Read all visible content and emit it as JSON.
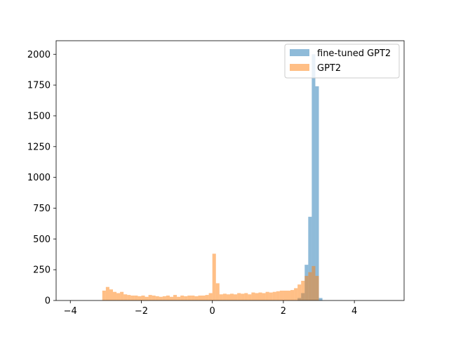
{
  "chart_data": {
    "type": "histogram",
    "xlim": [
      -4.4,
      5.4
    ],
    "ylim": [
      0,
      2110
    ],
    "xticks": [
      -4,
      -2,
      0,
      2,
      4
    ],
    "xtick_labels": [
      "−4",
      "−2",
      "0",
      "2",
      "4"
    ],
    "yticks": [
      0,
      250,
      500,
      750,
      1000,
      1250,
      1500,
      1750,
      2000
    ],
    "ytick_labels": [
      "0",
      "250",
      "500",
      "750",
      "1000",
      "1250",
      "1500",
      "1750",
      "2000"
    ],
    "grid": false,
    "legend_position": "top-right",
    "series": [
      {
        "name": "fine-tuned GPT2",
        "color": "#1f77b4",
        "opacity": 0.5,
        "bin_width": 0.1,
        "bins": [
          [
            2.4,
            20
          ],
          [
            2.5,
            60
          ],
          [
            2.6,
            290
          ],
          [
            2.7,
            680
          ],
          [
            2.8,
            2000
          ],
          [
            2.9,
            1740
          ],
          [
            3.0,
            20
          ]
        ]
      },
      {
        "name": "GPT2",
        "color": "#ff7f0e",
        "opacity": 0.5,
        "bin_width": 0.1,
        "bins": [
          [
            -3.1,
            80
          ],
          [
            -3.0,
            110
          ],
          [
            -2.9,
            90
          ],
          [
            -2.8,
            70
          ],
          [
            -2.7,
            60
          ],
          [
            -2.6,
            70
          ],
          [
            -2.5,
            50
          ],
          [
            -2.4,
            45
          ],
          [
            -2.3,
            40
          ],
          [
            -2.2,
            40
          ],
          [
            -2.1,
            35
          ],
          [
            -2.0,
            40
          ],
          [
            -1.9,
            30
          ],
          [
            -1.8,
            45
          ],
          [
            -1.7,
            40
          ],
          [
            -1.6,
            35
          ],
          [
            -1.5,
            30
          ],
          [
            -1.4,
            35
          ],
          [
            -1.3,
            40
          ],
          [
            -1.2,
            30
          ],
          [
            -1.1,
            45
          ],
          [
            -1.0,
            30
          ],
          [
            -0.9,
            40
          ],
          [
            -0.8,
            35
          ],
          [
            -0.7,
            40
          ],
          [
            -0.6,
            40
          ],
          [
            -0.5,
            35
          ],
          [
            -0.4,
            40
          ],
          [
            -0.3,
            40
          ],
          [
            -0.2,
            45
          ],
          [
            -0.1,
            60
          ],
          [
            0.0,
            380
          ],
          [
            0.1,
            140
          ],
          [
            0.2,
            50
          ],
          [
            0.3,
            55
          ],
          [
            0.4,
            50
          ],
          [
            0.5,
            55
          ],
          [
            0.6,
            50
          ],
          [
            0.7,
            60
          ],
          [
            0.8,
            55
          ],
          [
            0.9,
            60
          ],
          [
            1.0,
            50
          ],
          [
            1.1,
            65
          ],
          [
            1.2,
            60
          ],
          [
            1.3,
            65
          ],
          [
            1.4,
            60
          ],
          [
            1.5,
            70
          ],
          [
            1.6,
            65
          ],
          [
            1.7,
            70
          ],
          [
            1.8,
            75
          ],
          [
            1.9,
            80
          ],
          [
            2.0,
            80
          ],
          [
            2.1,
            80
          ],
          [
            2.2,
            85
          ],
          [
            2.3,
            100
          ],
          [
            2.4,
            130
          ],
          [
            2.5,
            160
          ],
          [
            2.6,
            200
          ],
          [
            2.7,
            230
          ],
          [
            2.8,
            280
          ],
          [
            2.9,
            200
          ]
        ]
      }
    ]
  }
}
